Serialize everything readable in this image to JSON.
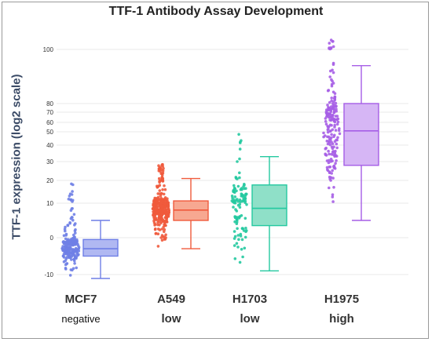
{
  "chart_data": {
    "type": "box",
    "title": "TTF-1 Antibody Assay Development",
    "ylabel": "TTF-1 expression (log2 scale)",
    "yticks": [
      -10,
      0,
      10,
      20,
      30,
      40,
      50,
      60,
      70,
      80,
      100
    ],
    "ylim": [
      -12,
      112
    ],
    "scale": "log2",
    "categories": [
      "MCF7",
      "A549",
      "H1703",
      "H1975"
    ],
    "sublabels": [
      "negative",
      "low",
      "low",
      "high"
    ],
    "series": [
      {
        "category": "MCF7",
        "min": -11,
        "q1": -5,
        "median": -3,
        "q3": -0.5,
        "max": 5,
        "color": "#6f7fe6",
        "fill": "#b0b8f2",
        "n": 220,
        "point_min": -11,
        "point_max": 19
      },
      {
        "category": "A549",
        "min": -3,
        "q1": 5,
        "median": 8,
        "q3": 11,
        "max": 21,
        "color": "#f05a3c",
        "fill": "#f7a891",
        "n": 320,
        "point_min": -3,
        "point_max": 29
      },
      {
        "category": "H1703",
        "min": -9,
        "q1": 3.5,
        "median": 8.5,
        "q3": 18,
        "max": 33,
        "color": "#24c9a0",
        "fill": "#8fe0c8",
        "n": 110,
        "point_min": -9,
        "point_max": 50
      },
      {
        "category": "H1975",
        "min": 5,
        "q1": 28,
        "median": 51,
        "q3": 80,
        "max": 94,
        "color": "#a65ee6",
        "fill": "#d6b6f5",
        "n": 190,
        "point_min": 5,
        "point_max": 108
      }
    ]
  }
}
